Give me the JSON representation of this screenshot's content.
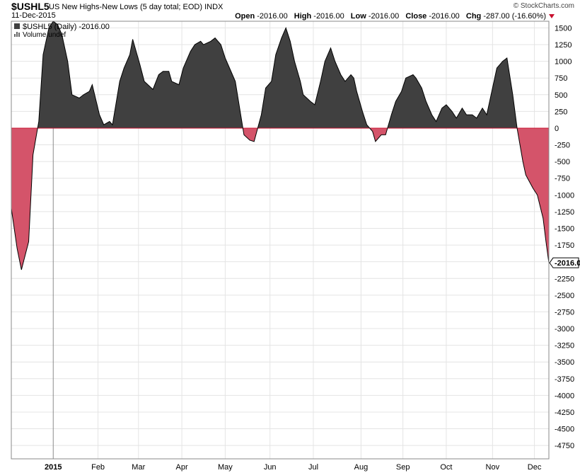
{
  "header": {
    "symbol": "$USHL5",
    "description": "US New Highs-New Lows (5 day total; EOD)",
    "exchange": "INDX",
    "date": "11-Dec-2015",
    "watermark": "© StockCharts.com",
    "open_label": "Open",
    "open_value": "-2016.00",
    "high_label": "High",
    "high_value": "-2016.00",
    "low_label": "Low",
    "low_value": "-2016.00",
    "close_label": "Close",
    "close_value": "-2016.00",
    "chg_label": "Chg",
    "chg_value": "-287.00 (-16.60%)"
  },
  "legend": {
    "series_label": "$USHL5 (Daily) -2016.00",
    "volume_label": "Volume undef"
  },
  "last_value_label": "-2016.00",
  "colors": {
    "positive_fill": "#404040",
    "negative_fill": "#d4546a",
    "line": "#000000",
    "zero_line": "#c8102e"
  },
  "chart_data": {
    "type": "area",
    "title": "$USHL5 US New Highs-New Lows (5 day total; EOD)",
    "ylim": [
      -4950,
      1600
    ],
    "y_ticks": [
      1500,
      1250,
      1000,
      750,
      500,
      250,
      0,
      -250,
      -500,
      -750,
      -1000,
      -1250,
      -1500,
      -1750,
      -2000,
      -2250,
      -2500,
      -2750,
      -3000,
      -3250,
      -3500,
      -3750,
      -4000,
      -4250,
      -4500,
      -4750
    ],
    "y_tick_labels": [
      "1500",
      "1250",
      "1000",
      "750",
      "500",
      "250",
      "0",
      "-250",
      "-500",
      "-750",
      "-1000",
      "-1250",
      "-1500",
      "-1750",
      "-2000",
      "-2250",
      "-2500",
      "-2750",
      "-3000",
      "-3250",
      "-3500",
      "-3750",
      "-4000",
      "-4250",
      "-4500",
      "-4750"
    ],
    "x_labels": [
      "2015",
      "Feb",
      "Mar",
      "Apr",
      "May",
      "Jun",
      "Jul",
      "Aug",
      "Sep",
      "Oct",
      "Nov",
      "Dec"
    ],
    "x_label_dates": [
      "2015-01-02",
      "2015-02-02",
      "2015-03-02",
      "2015-04-01",
      "2015-05-01",
      "2015-06-01",
      "2015-07-01",
      "2015-08-03",
      "2015-09-01",
      "2015-10-01",
      "2015-11-02",
      "2015-12-01"
    ],
    "xlim": [
      "2014-12-04",
      "2015-12-11"
    ],
    "series": [
      {
        "values": [
          [
            "2014-12-04",
            -1200
          ],
          [
            "2014-12-08",
            -1800
          ],
          [
            "2014-12-11",
            -2120
          ],
          [
            "2014-12-16",
            -1700
          ],
          [
            "2014-12-19",
            -400
          ],
          [
            "2014-12-23",
            100
          ],
          [
            "2014-12-26",
            1100
          ],
          [
            "2014-12-30",
            1500
          ],
          [
            "2015-01-02",
            1600
          ],
          [
            "2015-01-05",
            1550
          ],
          [
            "2015-01-08",
            1400
          ],
          [
            "2015-01-12",
            1000
          ],
          [
            "2015-01-15",
            500
          ],
          [
            "2015-01-20",
            450
          ],
          [
            "2015-01-23",
            500
          ],
          [
            "2015-01-27",
            550
          ],
          [
            "2015-01-29",
            650
          ],
          [
            "2015-02-03",
            200
          ],
          [
            "2015-02-06",
            50
          ],
          [
            "2015-02-10",
            100
          ],
          [
            "2015-02-12",
            50
          ],
          [
            "2015-02-17",
            700
          ],
          [
            "2015-02-20",
            900
          ],
          [
            "2015-02-24",
            1100
          ],
          [
            "2015-02-26",
            1330
          ],
          [
            "2015-03-03",
            950
          ],
          [
            "2015-03-06",
            700
          ],
          [
            "2015-03-10",
            620
          ],
          [
            "2015-03-12",
            580
          ],
          [
            "2015-03-16",
            800
          ],
          [
            "2015-03-19",
            850
          ],
          [
            "2015-03-23",
            850
          ],
          [
            "2015-03-25",
            700
          ],
          [
            "2015-03-30",
            650
          ],
          [
            "2015-04-02",
            900
          ],
          [
            "2015-04-07",
            1150
          ],
          [
            "2015-04-10",
            1250
          ],
          [
            "2015-04-14",
            1300
          ],
          [
            "2015-04-16",
            1250
          ],
          [
            "2015-04-21",
            1300
          ],
          [
            "2015-04-24",
            1350
          ],
          [
            "2015-04-28",
            1250
          ],
          [
            "2015-05-01",
            1050
          ],
          [
            "2015-05-05",
            850
          ],
          [
            "2015-05-08",
            700
          ],
          [
            "2015-05-11",
            300
          ],
          [
            "2015-05-14",
            -100
          ],
          [
            "2015-05-18",
            -180
          ],
          [
            "2015-05-21",
            -200
          ],
          [
            "2015-05-26",
            200
          ],
          [
            "2015-05-29",
            600
          ],
          [
            "2015-06-02",
            700
          ],
          [
            "2015-06-05",
            1100
          ],
          [
            "2015-06-09",
            1350
          ],
          [
            "2015-06-12",
            1500
          ],
          [
            "2015-06-15",
            1300
          ],
          [
            "2015-06-18",
            1000
          ],
          [
            "2015-06-22",
            700
          ],
          [
            "2015-06-24",
            500
          ],
          [
            "2015-06-29",
            400
          ],
          [
            "2015-07-02",
            350
          ],
          [
            "2015-07-06",
            700
          ],
          [
            "2015-07-09",
            1000
          ],
          [
            "2015-07-13",
            1200
          ],
          [
            "2015-07-16",
            1000
          ],
          [
            "2015-07-20",
            800
          ],
          [
            "2015-07-23",
            700
          ],
          [
            "2015-07-27",
            800
          ],
          [
            "2015-07-29",
            750
          ],
          [
            "2015-07-31",
            550
          ],
          [
            "2015-08-04",
            250
          ],
          [
            "2015-08-07",
            50
          ],
          [
            "2015-08-11",
            -50
          ],
          [
            "2015-08-13",
            -200
          ],
          [
            "2015-08-17",
            -100
          ],
          [
            "2015-08-20",
            -100
          ],
          [
            "2015-08-24",
            200
          ],
          [
            "2015-08-27",
            400
          ],
          [
            "2015-08-31",
            550
          ],
          [
            "2015-09-03",
            750
          ],
          [
            "2015-09-08",
            800
          ],
          [
            "2015-09-10",
            750
          ],
          [
            "2015-09-14",
            600
          ],
          [
            "2015-09-17",
            400
          ],
          [
            "2015-09-21",
            200
          ],
          [
            "2015-09-24",
            100
          ],
          [
            "2015-09-28",
            300
          ],
          [
            "2015-10-01",
            350
          ],
          [
            "2015-10-05",
            250
          ],
          [
            "2015-10-08",
            150
          ],
          [
            "2015-10-12",
            300
          ],
          [
            "2015-10-15",
            200
          ],
          [
            "2015-10-19",
            200
          ],
          [
            "2015-10-22",
            150
          ],
          [
            "2015-10-26",
            300
          ],
          [
            "2015-10-29",
            200
          ],
          [
            "2015-11-02",
            600
          ],
          [
            "2015-11-05",
            900
          ],
          [
            "2015-11-09",
            1000
          ],
          [
            "2015-11-12",
            1050
          ],
          [
            "2015-11-16",
            500
          ],
          [
            "2015-11-19",
            0
          ],
          [
            "2015-11-23",
            -500
          ],
          [
            "2015-11-25",
            -700
          ],
          [
            "2015-11-30",
            -900
          ],
          [
            "2015-12-03",
            -1000
          ],
          [
            "2015-12-07",
            -1350
          ],
          [
            "2015-12-09",
            -1700
          ],
          [
            "2015-12-11",
            -2016
          ]
        ]
      }
    ]
  }
}
